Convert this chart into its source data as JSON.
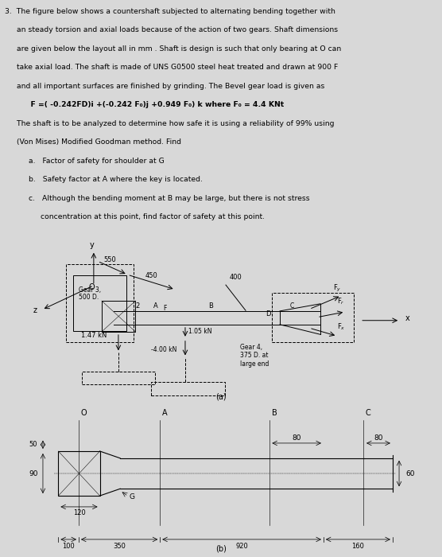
{
  "bg_color": "#d8d8d8",
  "text_lines": [
    [
      "3.  The figure below shows a countershaft subjected to alternating bending together with",
      false
    ],
    [
      "     an steady torsion and axial loads because of the action of two gears. Shaft dimensions",
      false
    ],
    [
      "     are given below the layout all in mm . Shaft is design is such that only bearing at O can",
      false
    ],
    [
      "     take axial load. The shaft is made of UNS G0500 steel heat treated and drawn at 900 F",
      false
    ],
    [
      "     and all important surfaces are finished by grinding. The Bevel gear load is given as",
      false
    ],
    [
      "          F =( -0.242FD)i +(-0.242 F₀)j +0.949 F₀) k where F₀ = 4.4 KNt",
      true
    ],
    [
      "     The shaft is to be analyzed to determine how safe it is using a reliability of 99% using",
      false
    ],
    [
      "     (Von Mises) Modified Goodman method. Find",
      false
    ],
    [
      "          a.   Factor of safety for shoulder at G",
      false
    ],
    [
      "          b.   Safety factor at A where the key is located.",
      false
    ],
    [
      "          c.   Although the bending moment at B may be large, but there is not stress",
      false
    ],
    [
      "               concentration at this point, find factor of safety at this point.",
      false
    ]
  ],
  "fig_label_a": "(a)",
  "fig_label_b": "(b)"
}
